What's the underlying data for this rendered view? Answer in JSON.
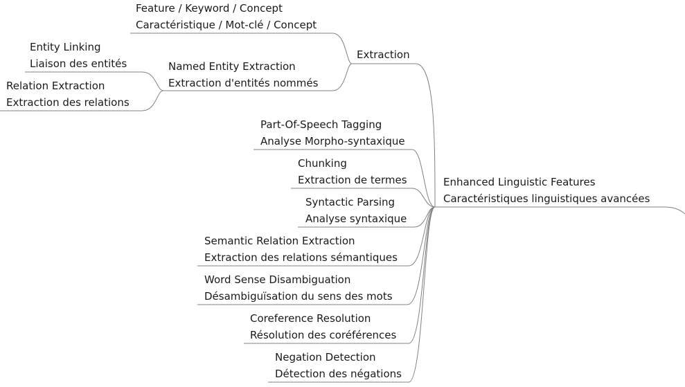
{
  "mindmap": {
    "root": {
      "line1": "Enhanced Linguistic Features",
      "line2": "Caractéristiques linguistiques avancées"
    },
    "nodes": {
      "extraction": {
        "line1": "Extraction"
      },
      "feature_keyword_concept": {
        "line1": "Feature / Keyword / Concept",
        "line2": "Caractéristique / Mot-clé / Concept"
      },
      "named_entity_extraction": {
        "line1": "Named Entity Extraction",
        "line2": "Extraction d'entités nommés"
      },
      "entity_linking": {
        "line1": "Entity Linking",
        "line2": "Liaison des entités"
      },
      "relation_extraction": {
        "line1": "Relation Extraction",
        "line2": "Extraction des relations"
      },
      "pos_tagging": {
        "line1": "Part-Of-Speech Tagging",
        "line2": "Analyse Morpho-syntaxique"
      },
      "chunking": {
        "line1": "Chunking",
        "line2": "Extraction de termes"
      },
      "syntactic_parsing": {
        "line1": "Syntactic Parsing",
        "line2": "Analyse syntaxique"
      },
      "semantic_relation_extraction": {
        "line1": "Semantic Relation Extraction",
        "line2": "Extraction des relations sémantiques"
      },
      "word_sense_disambiguation": {
        "line1": "Word Sense Disambiguation",
        "line2": "Désambiguïsation du sens des mots"
      },
      "coreference_resolution": {
        "line1": "Coreference Resolution",
        "line2": "Résolution des coréférences"
      },
      "negation_detection": {
        "line1": "Negation Detection",
        "line2": "Détection des négations"
      }
    }
  }
}
